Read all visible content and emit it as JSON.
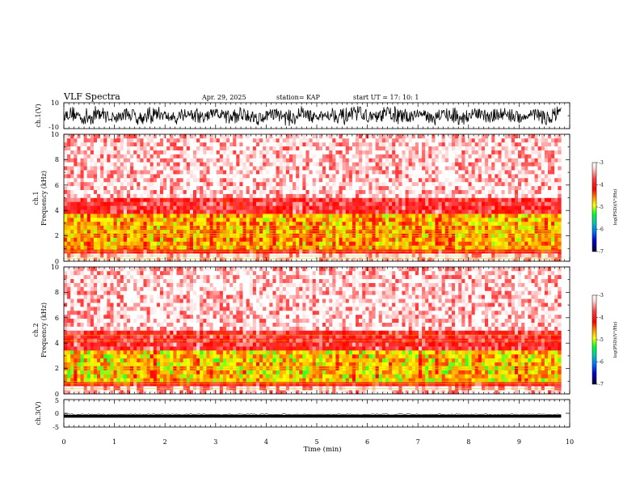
{
  "header": {
    "title": "VLF Spectra",
    "date": "Apr. 29, 2025",
    "station": "station= KAP",
    "start": "start  UT =   17: 10: 1"
  },
  "panels": {
    "ch1_wave": {
      "ylabel": "ch.1(V)",
      "ytick_labels": [
        "10",
        "-10"
      ]
    },
    "ch1_spec": {
      "ylabel_a": "ch.1",
      "ylabel_b": "Frequency  (kHz)",
      "ytick_labels": [
        "10",
        "8",
        "6",
        "4",
        "2",
        "0"
      ]
    },
    "ch2_spec": {
      "ylabel_a": "ch.2",
      "ylabel_b": "Frequency  (kHz)",
      "ytick_labels": [
        "10",
        "8",
        "6",
        "4",
        "2",
        "0"
      ]
    },
    "ch3_wave": {
      "ylabel": "ch.3(V)",
      "ytick_labels": [
        "5",
        "0",
        "-5"
      ]
    }
  },
  "xaxis": {
    "label": "Time  (min)",
    "tick_labels": [
      "0",
      "1",
      "2",
      "3",
      "4",
      "5",
      "6",
      "7",
      "8",
      "9",
      "10"
    ]
  },
  "colorbars": [
    {
      "label": "log(PSD)(V²/Hz)",
      "tick_labels": [
        "-3",
        "-4",
        "-5",
        "-6",
        "-7"
      ]
    },
    {
      "label": "log(PSD)(V²/Hz)",
      "tick_labels": [
        "-3",
        "-4",
        "-5",
        "-6",
        "-7"
      ]
    }
  ],
  "chart_data": [
    {
      "type": "line",
      "name": "ch1-waveform",
      "ylabel": "ch.1(V)",
      "xlabel": "Time  (min)",
      "xlim": [
        0,
        10
      ],
      "ylim": [
        -10,
        10
      ],
      "data_end_min": 9.83,
      "approx_range_v": [
        -8,
        9
      ]
    },
    {
      "type": "heatmap",
      "name": "ch1-spectrogram",
      "ylabel": "Frequency  (kHz)",
      "xlim": [
        0,
        10
      ],
      "ylim": [
        0,
        10
      ],
      "data_end_min": 9.83,
      "colorbar_range_log_psd": [
        -7,
        -3
      ],
      "bands": [
        {
          "freq_khz": [
            0,
            0.6
          ],
          "log_psd": -3.2
        },
        {
          "freq_khz": [
            0.6,
            1.0
          ],
          "log_psd": -4.0
        },
        {
          "freq_khz": [
            1.0,
            3.6
          ],
          "log_psd": -4.6
        },
        {
          "freq_khz": [
            3.6,
            5.0
          ],
          "log_psd": -3.8
        },
        {
          "freq_khz": [
            5.0,
            10.0
          ],
          "log_psd": -3.2
        }
      ],
      "lines_khz": [
        0.2,
        0.4,
        0.8,
        1.1,
        2.0,
        2.2,
        2.4,
        2.6,
        2.8
      ]
    },
    {
      "type": "heatmap",
      "name": "ch2-spectrogram",
      "ylabel": "Frequency  (kHz)",
      "xlim": [
        0,
        10
      ],
      "ylim": [
        0,
        10
      ],
      "data_end_min": 9.83,
      "colorbar_range_log_psd": [
        -7,
        -3
      ],
      "bands": [
        {
          "freq_khz": [
            0,
            0.6
          ],
          "log_psd": -3.2
        },
        {
          "freq_khz": [
            0.6,
            1.0
          ],
          "log_psd": -4.0
        },
        {
          "freq_khz": [
            1.0,
            3.4
          ],
          "log_psd": -4.7
        },
        {
          "freq_khz": [
            3.4,
            5.0
          ],
          "log_psd": -3.8
        },
        {
          "freq_khz": [
            5.0,
            10.0
          ],
          "log_psd": -3.2
        }
      ],
      "lines_khz": [
        0.4,
        0.8,
        1.0,
        2.0,
        2.2,
        4.2,
        4.6
      ]
    },
    {
      "type": "line",
      "name": "ch3-waveform",
      "ylabel": "ch.3(V)",
      "xlabel": "Time  (min)",
      "xlim": [
        0,
        10
      ],
      "ylim": [
        -5,
        5
      ],
      "data_end_min": 9.83,
      "approx_level_v": -1.0,
      "approx_band_v": [
        -1.6,
        -0.6
      ]
    }
  ]
}
